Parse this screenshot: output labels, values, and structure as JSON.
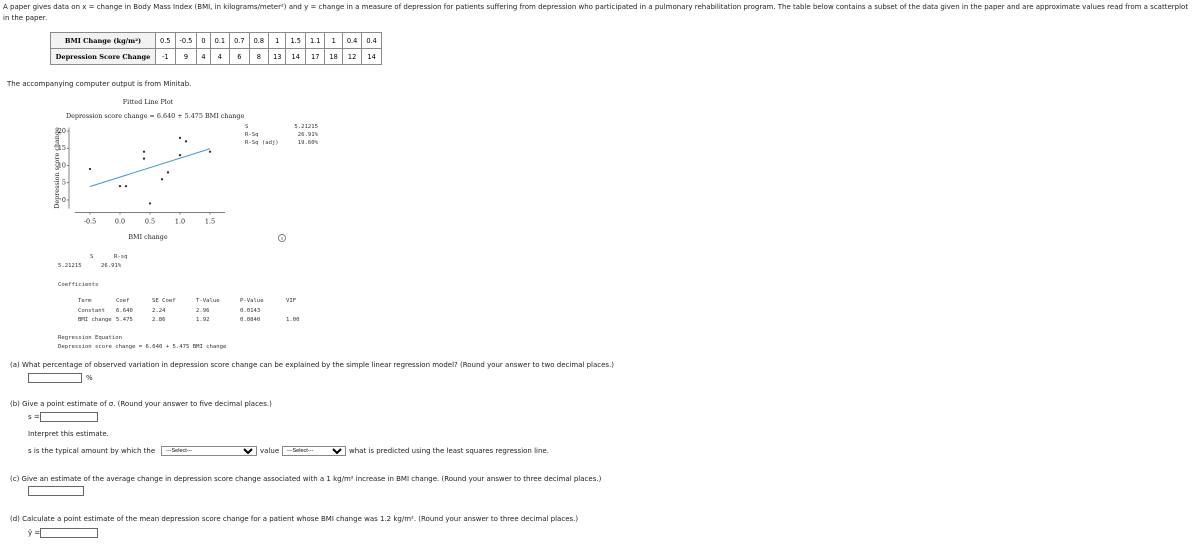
{
  "intro": "A paper gives data on x = change in Body Mass Index (BMI, in kilograms/meter²) and y = change in a measure of depression for patients suffering from depression who participated in a pulmonary rehabilitation program. The table below contains a subset of the data given in the paper and are approximate values read from a scatterplot in the paper.",
  "data_table": {
    "rows": [
      {
        "label": "BMI Change (kg/m²)",
        "values": [
          0.5,
          -0.5,
          0,
          0.1,
          0.7,
          0.8,
          1,
          1.5,
          1.1,
          1,
          0.4,
          0.4
        ]
      },
      {
        "label": "Depression Score Change",
        "values": [
          -1,
          9,
          4,
          4,
          6,
          8,
          13,
          14,
          17,
          18,
          12,
          14
        ]
      }
    ]
  },
  "output_note": "The accompanying computer output is from Minitab.",
  "chart_data": {
    "type": "scatter",
    "title": "Fitted Line Plot",
    "equation": "Depression score change = 6.640 + 5.475 BMI change",
    "stats": [
      {
        "label": "S",
        "value": "5.21215"
      },
      {
        "label": "R-Sq",
        "value": "26.91%"
      },
      {
        "label": "R-Sq (adj)",
        "value": "19.60%"
      }
    ],
    "x_label": "BMI change",
    "y_label": "Depression score change",
    "x": [
      0.5,
      -0.5,
      0,
      0.1,
      0.7,
      0.8,
      1,
      1.5,
      1.1,
      1,
      0.4,
      0.4
    ],
    "y": [
      -1,
      9,
      4,
      4,
      6,
      8,
      13,
      14,
      17,
      18,
      12,
      14
    ],
    "color": "#222222",
    "fit": {
      "intercept": 6.64,
      "slope": 5.475,
      "color": "#3b9ad6"
    },
    "xlim": [
      -0.75,
      1.75
    ],
    "ylim": [
      -2.5,
      21
    ],
    "xticks": [
      -0.5,
      {
        "value": 0,
        "label": "0.0"
      },
      0.5,
      {
        "value": 1,
        "label": "1.0"
      },
      1.5
    ],
    "yticks": [
      0,
      5,
      10,
      15,
      20
    ]
  },
  "model_summary": {
    "headers": [
      "S",
      "R-sq"
    ],
    "values": [
      "5.21215",
      "26.91%"
    ]
  },
  "coefficients": {
    "title": "Coefficients",
    "headers": [
      "Term",
      "Coef",
      "SE Coef",
      "T-Value",
      "P-Value",
      "VIF"
    ],
    "rows": [
      [
        "Constant",
        "6.640",
        "2.24",
        "2.96",
        "0.0143",
        ""
      ],
      [
        "BMI change",
        "5.475",
        "2.86",
        "1.92",
        "0.0840",
        "1.00"
      ]
    ]
  },
  "regression_equation": {
    "title": "Regression Equation",
    "text": "Depression score change = 6.640 + 5.475 BMI change"
  },
  "questions": {
    "a": {
      "text": "(a)  What percentage of observed variation in depression score change can be explained by the simple linear regression model? (Round your answer to two decimal places.)",
      "unit": "%"
    },
    "b": {
      "text": "(b)  Give a point estimate of σ. (Round your answer to five decimal places.)",
      "prefix": "s =",
      "interpret": "Interpret this estimate.",
      "sentence": [
        "s is the typical amount by which the",
        "value",
        "what is predicted using the least squares regression line."
      ],
      "select": "---Select---"
    },
    "c": {
      "text": "(c)  Give an estimate of the average change in depression score change associated with a 1 kg/m² increase in BMI change. (Round your answer to three decimal places.)"
    },
    "d": {
      "text": "(d)  Calculate a point estimate of the mean depression score change for a patient whose BMI change was 1.2 kg/m². (Round your answer to three decimal places.)",
      "prefix": "ŷ ="
    }
  }
}
